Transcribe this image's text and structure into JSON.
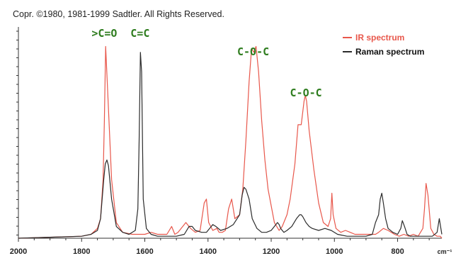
{
  "copyright": "Copr. ©1980, 1981-1999 Sadtler.   All Rights Reserved.",
  "peak_labels": [
    {
      "text": ">C=O",
      "x": 1728
    },
    {
      "text": "C=C",
      "x": 1615
    },
    {
      "text": "C-O-C",
      "x": 1257
    },
    {
      "text": "C-O-C",
      "x": 1090
    }
  ],
  "unit": "cm⁻¹",
  "colors": {
    "ir": "#e8574b",
    "raman": "#2b2b2b",
    "label_green": "#2f7d1f",
    "axis": "#333333"
  },
  "chart_data": {
    "type": "line",
    "xlim": [
      2000,
      660
    ],
    "ylim": [
      0,
      1
    ],
    "x_ticks": [
      2000,
      1800,
      1600,
      1400,
      1200,
      1000,
      800,
      "cm⁻¹"
    ],
    "xlabel": "cm⁻¹",
    "ylabel": "",
    "grid": false,
    "legend_position": "top-right",
    "series": [
      {
        "name": "IR spectrum",
        "color": "#e8574b",
        "x": [
          2000,
          1900,
          1800,
          1770,
          1750,
          1740,
          1732,
          1728,
          1724,
          1716,
          1705,
          1690,
          1670,
          1640,
          1620,
          1600,
          1580,
          1560,
          1530,
          1515,
          1505,
          1495,
          1470,
          1455,
          1440,
          1425,
          1412,
          1405,
          1398,
          1385,
          1372,
          1365,
          1355,
          1345,
          1335,
          1325,
          1315,
          1300,
          1290,
          1280,
          1270,
          1262,
          1255,
          1248,
          1240,
          1230,
          1220,
          1210,
          1190,
          1175,
          1165,
          1150,
          1140,
          1125,
          1115,
          1105,
          1096,
          1092,
          1088,
          1080,
          1065,
          1050,
          1035,
          1020,
          1012,
          1008,
          1004,
          995,
          980,
          965,
          950,
          935,
          920,
          895,
          880,
          870,
          860,
          845,
          830,
          810,
          795,
          780,
          765,
          750,
          735,
          720,
          715,
          710,
          704,
          695,
          685,
          675,
          665,
          660
        ],
        "y": [
          0.0,
          0.005,
          0.01,
          0.02,
          0.05,
          0.1,
          0.3,
          0.6,
          0.98,
          0.7,
          0.3,
          0.08,
          0.03,
          0.02,
          0.02,
          0.02,
          0.03,
          0.02,
          0.02,
          0.06,
          0.02,
          0.03,
          0.08,
          0.05,
          0.03,
          0.04,
          0.18,
          0.2,
          0.08,
          0.04,
          0.05,
          0.03,
          0.03,
          0.04,
          0.15,
          0.2,
          0.1,
          0.12,
          0.25,
          0.5,
          0.8,
          0.97,
          0.95,
          0.98,
          0.85,
          0.6,
          0.4,
          0.25,
          0.08,
          0.04,
          0.06,
          0.12,
          0.2,
          0.38,
          0.58,
          0.58,
          0.7,
          0.73,
          0.7,
          0.55,
          0.35,
          0.18,
          0.08,
          0.06,
          0.1,
          0.23,
          0.12,
          0.05,
          0.03,
          0.04,
          0.03,
          0.02,
          0.02,
          0.02,
          0.02,
          0.02,
          0.03,
          0.05,
          0.04,
          0.02,
          0.01,
          0.02,
          0.01,
          0.02,
          0.01,
          0.05,
          0.15,
          0.28,
          0.22,
          0.05,
          0.02,
          0.01,
          0.01,
          0.0
        ]
      },
      {
        "name": "Raman spectrum",
        "color": "#2b2b2b",
        "x": [
          2000,
          1900,
          1800,
          1770,
          1750,
          1740,
          1730,
          1725,
          1720,
          1715,
          1705,
          1690,
          1670,
          1650,
          1630,
          1622,
          1618,
          1614,
          1610,
          1605,
          1595,
          1580,
          1560,
          1520,
          1500,
          1475,
          1460,
          1450,
          1440,
          1420,
          1405,
          1395,
          1385,
          1375,
          1360,
          1340,
          1320,
          1300,
          1292,
          1286,
          1280,
          1270,
          1260,
          1245,
          1230,
          1215,
          1200,
          1190,
          1180,
          1175,
          1170,
          1160,
          1150,
          1135,
          1120,
          1110,
          1105,
          1100,
          1090,
          1080,
          1070,
          1050,
          1030,
          1010,
          990,
          960,
          930,
          900,
          880,
          870,
          865,
          860,
          855,
          850,
          845,
          838,
          830,
          815,
          800,
          790,
          785,
          778,
          770,
          760,
          745,
          730,
          715,
          700,
          690,
          675,
          668,
          660
        ],
        "y": [
          0.0,
          0.005,
          0.01,
          0.02,
          0.04,
          0.1,
          0.3,
          0.38,
          0.4,
          0.37,
          0.2,
          0.06,
          0.03,
          0.02,
          0.04,
          0.15,
          0.5,
          0.95,
          0.85,
          0.2,
          0.05,
          0.02,
          0.01,
          0.01,
          0.01,
          0.02,
          0.06,
          0.06,
          0.04,
          0.03,
          0.03,
          0.05,
          0.07,
          0.06,
          0.04,
          0.05,
          0.07,
          0.12,
          0.22,
          0.26,
          0.25,
          0.2,
          0.1,
          0.05,
          0.03,
          0.03,
          0.04,
          0.06,
          0.08,
          0.07,
          0.05,
          0.03,
          0.04,
          0.06,
          0.1,
          0.12,
          0.12,
          0.11,
          0.08,
          0.06,
          0.05,
          0.04,
          0.05,
          0.04,
          0.02,
          0.01,
          0.01,
          0.01,
          0.02,
          0.08,
          0.1,
          0.12,
          0.2,
          0.23,
          0.18,
          0.1,
          0.05,
          0.03,
          0.02,
          0.05,
          0.09,
          0.06,
          0.02,
          0.01,
          0.01,
          0.01,
          0.01,
          0.01,
          0.01,
          0.03,
          0.1,
          0.02
        ]
      }
    ]
  }
}
